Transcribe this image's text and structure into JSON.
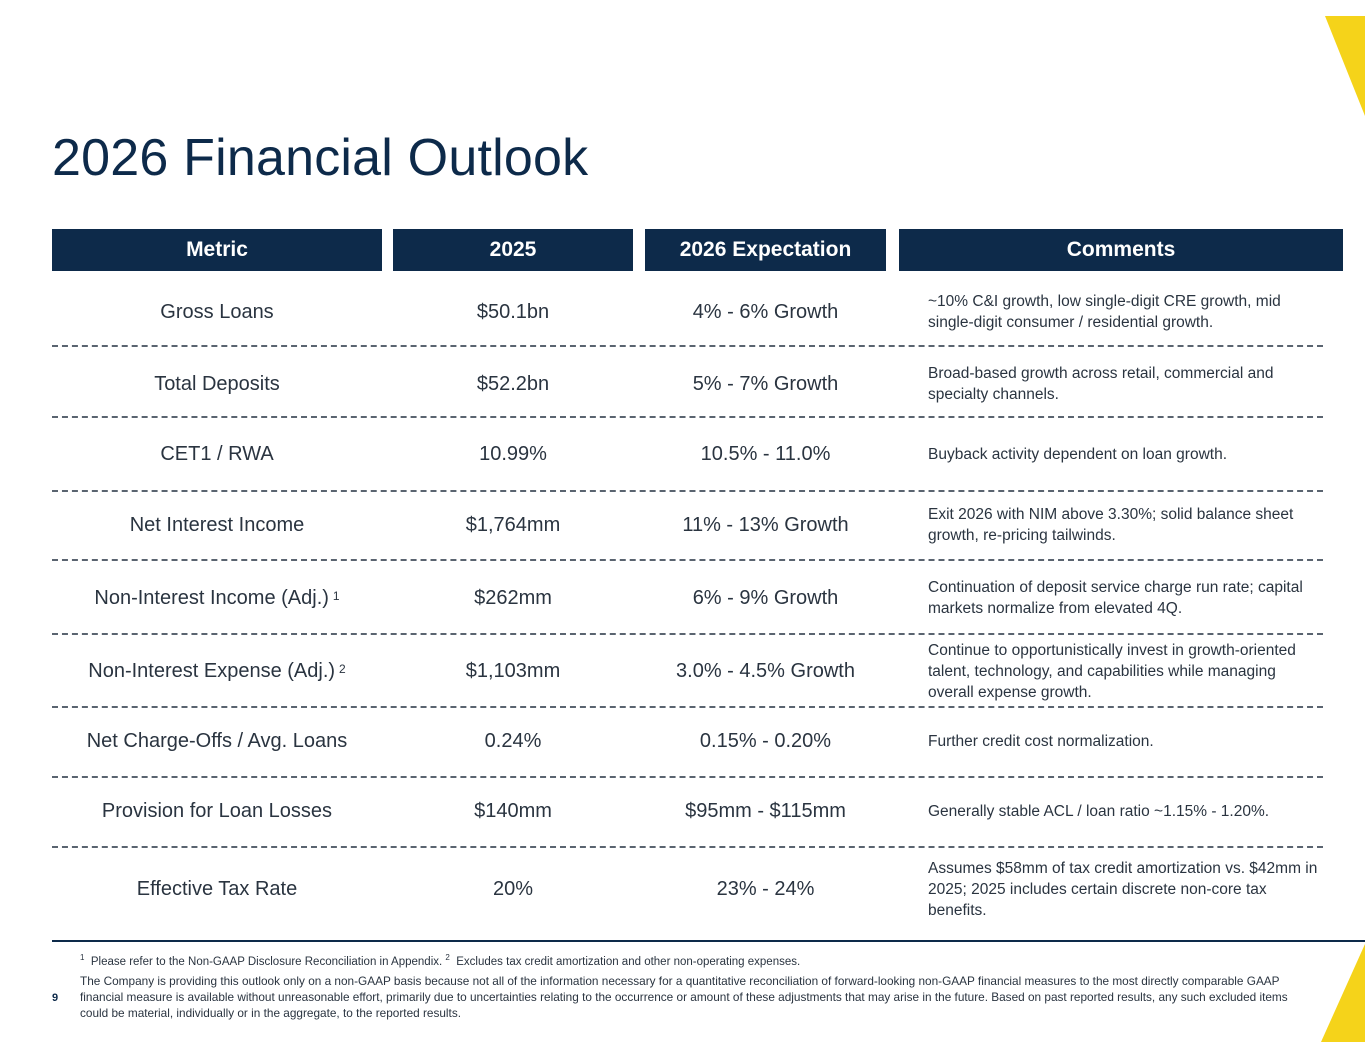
{
  "title": "2026 Financial Outlook",
  "headers": {
    "metric": "Metric",
    "year": "2025",
    "expectation": "2026 Expectation",
    "comments": "Comments"
  },
  "rows": [
    {
      "metric": "Gross Loans",
      "sup": "",
      "value": "$50.1bn",
      "expectation": "4% - 6% Growth",
      "comment": "~10% C&I growth, low single-digit CRE growth, mid single-digit consumer / residential growth."
    },
    {
      "metric": "Total Deposits",
      "sup": "",
      "value": "$52.2bn",
      "expectation": "5% - 7% Growth",
      "comment": "Broad-based growth across retail, commercial and specialty channels."
    },
    {
      "metric": "CET1 / RWA",
      "sup": "",
      "value": "10.99%",
      "expectation": "10.5% - 11.0%",
      "comment": "Buyback activity dependent on loan growth."
    },
    {
      "metric": "Net Interest Income",
      "sup": "",
      "value": "$1,764mm",
      "expectation": "11% - 13% Growth",
      "comment": "Exit 2026 with NIM above 3.30%; solid balance sheet growth, re-pricing tailwinds."
    },
    {
      "metric": "Non-Interest Income (Adj.)",
      "sup": "1",
      "value": "$262mm",
      "expectation": "6% - 9% Growth",
      "comment": "Continuation of deposit service charge run rate; capital markets normalize from elevated 4Q."
    },
    {
      "metric": "Non-Interest Expense (Adj.)",
      "sup": "2",
      "value": "$1,103mm",
      "expectation": "3.0% - 4.5% Growth",
      "comment": "Continue to opportunistically invest in growth-oriented talent, technology, and capabilities while managing overall expense growth."
    },
    {
      "metric": "Net Charge-Offs / Avg. Loans",
      "sup": "",
      "value": "0.24%",
      "expectation": "0.15% - 0.20%",
      "comment": "Further credit cost normalization."
    },
    {
      "metric": "Provision for Loan Losses",
      "sup": "",
      "value": "$140mm",
      "expectation": "$95mm - $115mm",
      "comment": "Generally stable ACL / loan ratio ~1.15% - 1.20%."
    },
    {
      "metric": "Effective Tax Rate",
      "sup": "",
      "value": "20%",
      "expectation": "23% - 24%",
      "comment": "Assumes $58mm of tax credit amortization vs. $42mm in 2025; 2025 includes certain discrete non-core tax benefits."
    }
  ],
  "footnotes": {
    "sup1": "1",
    "note1": "Please refer to the Non-GAAP Disclosure Reconciliation in Appendix.",
    "sup2": "2",
    "note2": "Excludes tax credit amortization and other non-operating expenses.",
    "disclaimer": "The Company is providing this outlook only on a non-GAAP basis because not all of the information necessary for a quantitative reconciliation of forward-looking non-GAAP financial measures to the most directly comparable GAAP financial measure is available without unreasonable effort, primarily due to uncertainties relating to the occurrence or amount of these adjustments that may arise in the future. Based on past reported results, any such excluded items could be material, individually or in the aggregate, to the reported results."
  },
  "page_number": "9",
  "colors": {
    "navy": "#0d2a4a",
    "accent": "#f5d31a",
    "text": "#2a3440"
  }
}
